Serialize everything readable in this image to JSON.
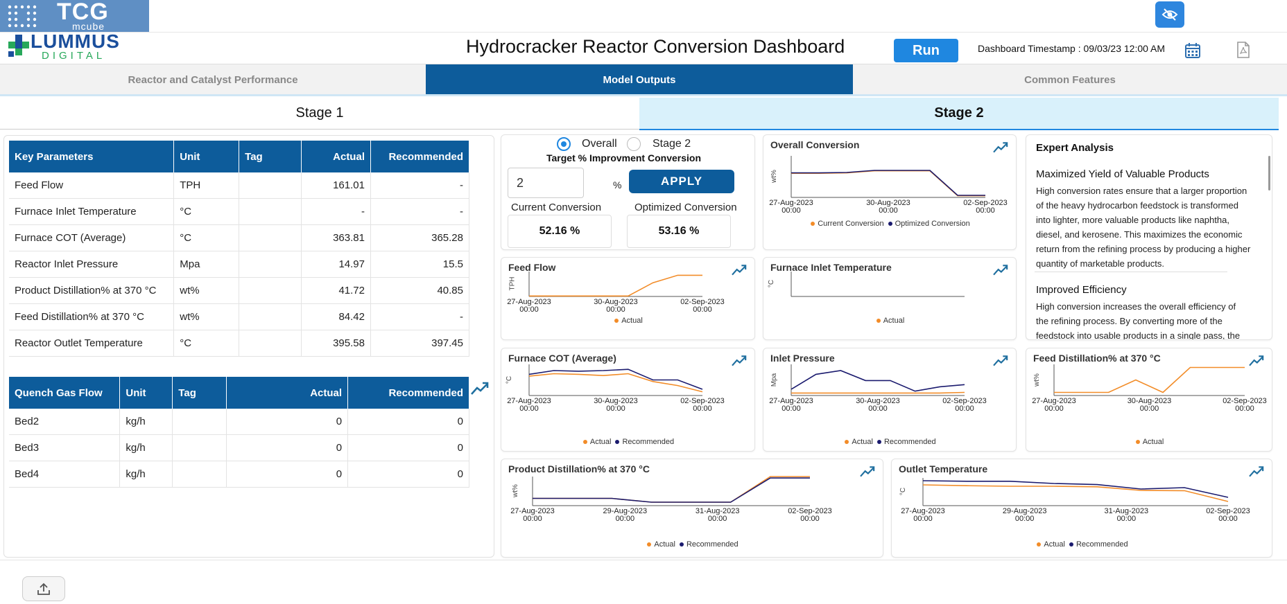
{
  "header": {
    "tcg_logo_text": "TCG",
    "tcg_logo_sub": "mcube",
    "lummus_logo_text": "LUMMUS",
    "lummus_logo_sub": "DIGITAL",
    "title": "Hydrocracker Reactor Conversion Dashboard",
    "run_label": "Run",
    "timestamp": "Dashboard Timestamp : 09/03/23 12:00 AM",
    "icons": [
      "eye-slash-icon",
      "calendar-icon",
      "pdf-icon"
    ]
  },
  "tabs": [
    {
      "label": "Reactor and Catalyst Performance",
      "active": false
    },
    {
      "label": "Model Outputs",
      "active": true
    },
    {
      "label": "Common Features",
      "active": false
    }
  ],
  "stages": [
    {
      "label": "Stage 1",
      "active": false
    },
    {
      "label": "Stage 2",
      "active": true
    }
  ],
  "key_parameters": {
    "columns": [
      "Key Parameters",
      "Unit",
      "Tag",
      "Actual",
      "Recommended"
    ],
    "rows": [
      [
        "Feed Flow",
        "TPH",
        "",
        "161.01",
        "-"
      ],
      [
        "Furnace Inlet Temperature",
        "°C",
        "",
        "-",
        "-"
      ],
      [
        "Furnace COT (Average)",
        "°C",
        "",
        "363.81",
        "365.28"
      ],
      [
        "Reactor Inlet Pressure",
        "Mpa",
        "",
        "14.97",
        "15.5"
      ],
      [
        "Product Distillation% at 370 °C",
        "wt%",
        "",
        "41.72",
        "40.85"
      ],
      [
        "Feed Distillation% at 370 °C",
        "wt%",
        "",
        "84.42",
        "-"
      ],
      [
        "Reactor Outlet Temperature",
        "°C",
        "",
        "395.58",
        "397.45"
      ]
    ]
  },
  "quench_gas": {
    "columns": [
      "Quench Gas Flow",
      "Unit",
      "Tag",
      "Actual",
      "Recommended"
    ],
    "rows": [
      [
        "Bed2",
        "kg/h",
        "",
        "0",
        "0"
      ],
      [
        "Bed3",
        "kg/h",
        "",
        "0",
        "0"
      ],
      [
        "Bed4",
        "kg/h",
        "",
        "0",
        "0"
      ]
    ]
  },
  "target": {
    "radio_overall": "Overall",
    "radio_stage2": "Stage 2",
    "selected": "Overall",
    "title": "Target % Improvment Conversion",
    "input_value": "2",
    "percent": "%",
    "apply_label": "APPLY",
    "current_label": "Current Conversion",
    "current_value": "52.16 %",
    "optimized_label": "Optimized Conversion",
    "optimized_value": "53.16 %"
  },
  "expert": {
    "title": "Expert Analysis",
    "sections": [
      {
        "heading": "Maximized Yield of Valuable Products",
        "lines": [
          "High conversion rates ensure that a larger proportion",
          "of the heavy hydrocarbon feedstock is transformed",
          "into lighter, more valuable products like naphtha,",
          "diesel, and kerosene. This maximizes the economic",
          "return from the refining process by producing a higher",
          "quantity of marketable products."
        ]
      },
      {
        "heading": "Improved Efficiency",
        "lines": [
          "High conversion increases the overall efficiency of",
          "the refining process. By converting more of the",
          "feedstock into usable products in a single pass, the"
        ]
      }
    ]
  },
  "colors": {
    "actual": "#f28c28",
    "recommended": "#1a1a6e",
    "brand_blue": "#0d5c9b",
    "trend": "#1f6f9f"
  },
  "chart_data": [
    {
      "id": "overall",
      "type": "line",
      "title": "Overall Conversion",
      "ylabel": "wt%",
      "xticks": [
        "27-Aug-2023 00:00",
        "30-Aug-2023 00:00",
        "02-Sep-2023 00:00"
      ],
      "x": [
        0,
        1,
        2,
        3,
        4,
        5,
        6,
        7
      ],
      "ylim": [
        0,
        100
      ],
      "series": [
        {
          "name": "Current Conversion",
          "color": "#f28c28",
          "values": [
            58,
            58,
            59,
            64,
            64,
            64,
            4,
            4
          ]
        },
        {
          "name": "Optimized Conversion",
          "color": "#1a1a6e",
          "values": [
            59,
            59,
            60,
            65,
            65,
            65,
            5,
            5
          ]
        }
      ]
    },
    {
      "id": "feedflow",
      "type": "line",
      "title": "Feed Flow",
      "ylabel": "TPH",
      "xticks": [
        "27-Aug-2023 00:00",
        "30-Aug-2023 00:00",
        "02-Sep-2023 00:00"
      ],
      "x": [
        0,
        1,
        2,
        3,
        4,
        5,
        6,
        7
      ],
      "ylim": [
        0,
        100
      ],
      "series": [
        {
          "name": "Actual",
          "color": "#f28c28",
          "values": [
            2,
            2,
            2,
            2,
            2,
            55,
            85,
            85
          ]
        }
      ]
    },
    {
      "id": "furnace_inlet",
      "type": "line",
      "title": "Furnace Inlet Temperature",
      "ylabel": "°C",
      "xticks": [],
      "x": [],
      "ylim": [
        0,
        100
      ],
      "series": [
        {
          "name": "Actual",
          "color": "#f28c28",
          "values": []
        }
      ]
    },
    {
      "id": "furnace_cot",
      "type": "line",
      "title": "Furnace COT (Average)",
      "ylabel": "°C",
      "xticks": [
        "27-Aug-2023 00:00",
        "30-Aug-2023 00:00",
        "02-Sep-2023 00:00"
      ],
      "x": [
        0,
        1,
        2,
        3,
        4,
        5,
        6,
        7
      ],
      "ylim": [
        0,
        100
      ],
      "series": [
        {
          "name": "Actual",
          "color": "#f28c28",
          "values": [
            62,
            70,
            68,
            64,
            70,
            45,
            32,
            12
          ]
        },
        {
          "name": "Recommended",
          "color": "#1a1a6e",
          "values": [
            68,
            80,
            78,
            80,
            84,
            50,
            50,
            20
          ]
        }
      ]
    },
    {
      "id": "inlet_pressure",
      "type": "line",
      "title": "Inlet Pressure",
      "ylabel": "Mpa",
      "xticks": [
        "27-Aug-2023 00:00",
        "30-Aug-2023 00:00",
        "02-Sep-2023 00:00"
      ],
      "x": [
        0,
        1,
        2,
        3,
        4,
        5,
        6,
        7
      ],
      "ylim": [
        0,
        100
      ],
      "series": [
        {
          "name": "Actual",
          "color": "#f28c28",
          "values": [
            8,
            8,
            8,
            8,
            8,
            8,
            8,
            10
          ]
        },
        {
          "name": "Recommended",
          "color": "#1a1a6e",
          "values": [
            20,
            68,
            80,
            48,
            48,
            14,
            28,
            35
          ]
        }
      ]
    },
    {
      "id": "feed_distillation",
      "type": "line",
      "title": "Feed Distillation% at 370 °C",
      "ylabel": "wt%",
      "xticks": [
        "27-Aug-2023 00:00",
        "30-Aug-2023 00:00",
        "02-Sep-2023 00:00"
      ],
      "x": [
        0,
        1,
        2,
        3,
        4,
        5,
        6,
        7
      ],
      "ylim": [
        0,
        100
      ],
      "series": [
        {
          "name": "Actual",
          "color": "#f28c28",
          "values": [
            10,
            10,
            10,
            50,
            10,
            90,
            90,
            90
          ]
        }
      ]
    },
    {
      "id": "product_distillation",
      "type": "line",
      "title": "Product Distillation% at 370 °C",
      "ylabel": "wt%",
      "xticks": [
        "27-Aug-2023 00:00",
        "29-Aug-2023 00:00",
        "31-Aug-2023 00:00",
        "02-Sep-2023 00:00"
      ],
      "x": [
        0,
        1,
        2,
        3,
        4,
        5,
        6,
        7
      ],
      "ylim": [
        0,
        100
      ],
      "series": [
        {
          "name": "Actual",
          "color": "#f28c28",
          "values": [
            25,
            25,
            25,
            12,
            12,
            12,
            100,
            100
          ]
        },
        {
          "name": "Recommended",
          "color": "#1a1a6e",
          "values": [
            25,
            25,
            25,
            12,
            12,
            12,
            95,
            95
          ]
        }
      ]
    },
    {
      "id": "outlet_temp",
      "type": "line",
      "title": "Outlet Temperature",
      "ylabel": "°C",
      "xticks": [
        "27-Aug-2023 00:00",
        "29-Aug-2023 00:00",
        "31-Aug-2023 00:00",
        "02-Sep-2023 00:00"
      ],
      "x": [
        0,
        1,
        2,
        3,
        4,
        5,
        6,
        7
      ],
      "ylim": [
        0,
        100
      ],
      "series": [
        {
          "name": "Actual",
          "color": "#f28c28",
          "values": [
            75,
            72,
            70,
            70,
            68,
            55,
            54,
            15
          ]
        },
        {
          "name": "Recommended",
          "color": "#1a1a6e",
          "values": [
            90,
            88,
            88,
            80,
            76,
            60,
            65,
            30
          ]
        }
      ]
    }
  ]
}
